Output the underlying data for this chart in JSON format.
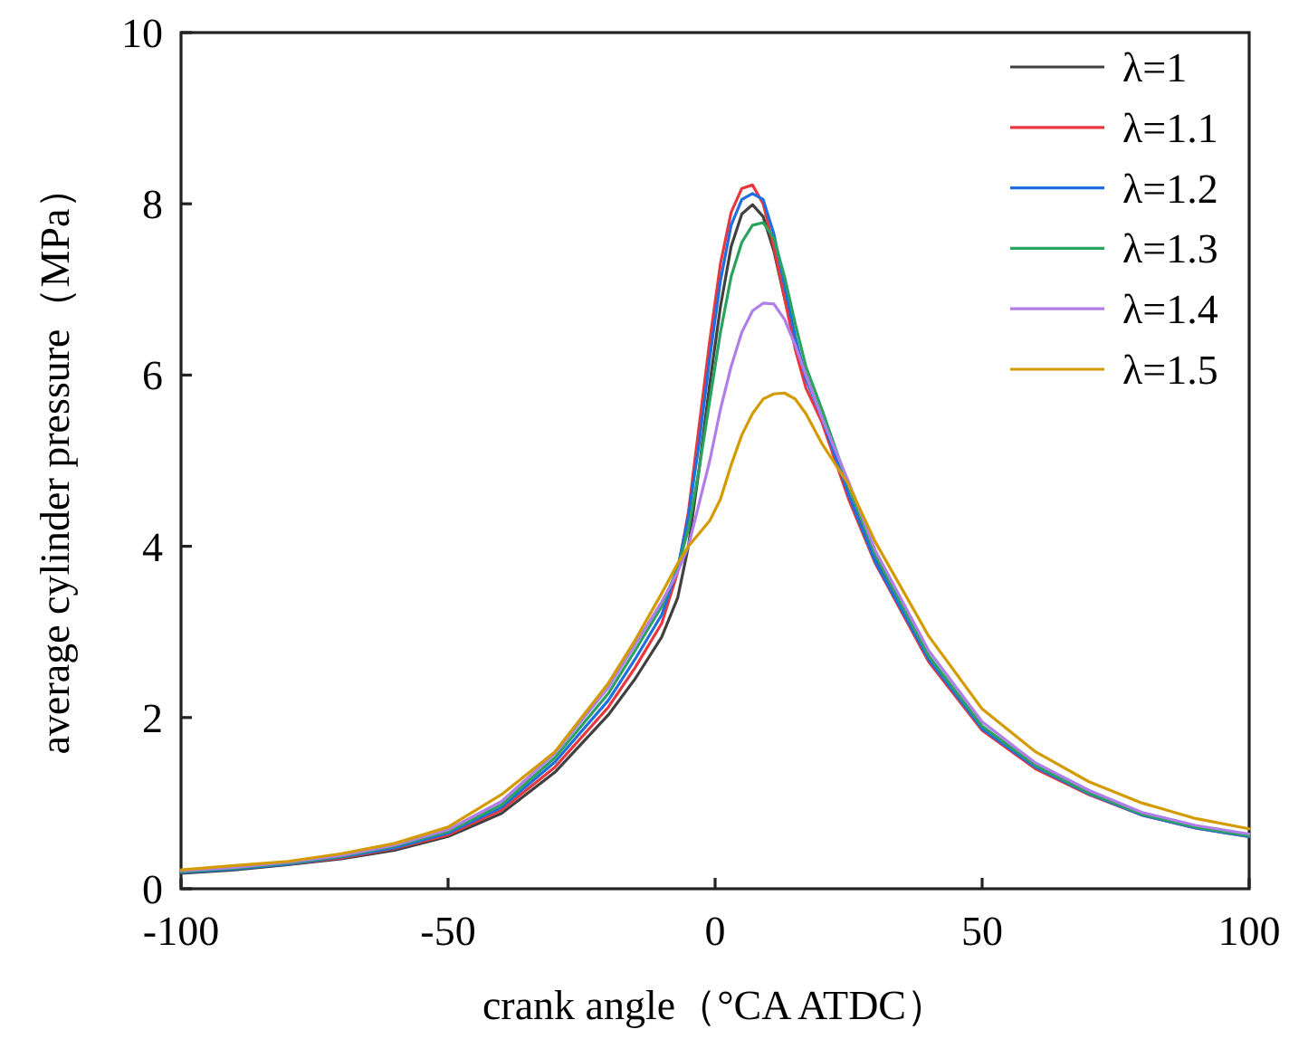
{
  "chart_data": {
    "type": "line",
    "xlabel": "crank angle（°CA ATDC）",
    "ylabel": "average cylinder pressure（MPa）",
    "xlim": [
      -100,
      100
    ],
    "xticks": [
      -100,
      -50,
      0,
      50,
      100
    ],
    "ylim": [
      0,
      10
    ],
    "yticks": [
      0,
      2,
      4,
      6,
      8,
      10
    ],
    "grid": false,
    "legend": "top right",
    "marker": "none",
    "line_style": "solid",
    "x": [
      -100,
      -90,
      -80,
      -70,
      -60,
      -50,
      -40,
      -30,
      -20,
      -15,
      -10,
      -7,
      -5,
      -3,
      -1,
      1,
      3,
      5,
      7,
      9,
      11,
      13,
      15,
      17,
      20,
      25,
      30,
      40,
      50,
      60,
      70,
      80,
      90,
      100
    ],
    "series": [
      {
        "name": "λ=1",
        "color": "#404040",
        "values": [
          0.18,
          0.22,
          0.28,
          0.35,
          0.45,
          0.61,
          0.88,
          1.36,
          2.03,
          2.45,
          2.94,
          3.4,
          4.0,
          4.9,
          5.9,
          6.8,
          7.5,
          7.88,
          7.99,
          7.85,
          7.45,
          6.9,
          6.4,
          6.0,
          5.5,
          4.6,
          3.85,
          2.7,
          1.88,
          1.43,
          1.12,
          0.87,
          0.72,
          0.62
        ]
      },
      {
        "name": "λ=1.1",
        "color": "#e8383d",
        "values": [
          null,
          null,
          0.29,
          0.36,
          0.47,
          0.63,
          0.92,
          1.42,
          2.12,
          2.58,
          3.1,
          3.7,
          4.4,
          5.4,
          6.4,
          7.3,
          7.9,
          8.18,
          8.22,
          8.0,
          7.5,
          6.9,
          6.3,
          5.85,
          5.45,
          4.55,
          3.8,
          2.65,
          1.85,
          1.4,
          1.1,
          0.86,
          0.71,
          0.61
        ]
      },
      {
        "name": "λ=1.2",
        "color": "#1f6fe0",
        "values": [
          0.19,
          0.23,
          0.29,
          0.37,
          0.48,
          0.65,
          0.95,
          1.48,
          2.2,
          2.68,
          3.2,
          3.75,
          4.35,
          5.2,
          6.2,
          7.1,
          7.75,
          8.05,
          8.12,
          8.05,
          7.65,
          7.05,
          6.45,
          5.95,
          5.5,
          4.6,
          3.82,
          2.68,
          1.87,
          1.42,
          1.11,
          0.86,
          0.71,
          0.61
        ]
      },
      {
        "name": "λ=1.3",
        "color": "#2aa35f",
        "values": [
          0.2,
          0.24,
          0.3,
          0.38,
          0.5,
          0.67,
          0.98,
          1.53,
          2.28,
          2.78,
          3.3,
          3.75,
          4.2,
          4.9,
          5.7,
          6.5,
          7.15,
          7.55,
          7.75,
          7.78,
          7.6,
          7.15,
          6.6,
          6.1,
          5.6,
          4.7,
          3.9,
          2.72,
          1.9,
          1.44,
          1.12,
          0.87,
          0.72,
          0.62
        ]
      },
      {
        "name": "λ=1.4",
        "color": "#b07ee8",
        "values": [
          0.21,
          0.25,
          0.31,
          0.39,
          0.51,
          0.69,
          1.02,
          1.58,
          2.35,
          2.85,
          3.35,
          3.7,
          4.0,
          4.5,
          5.0,
          5.6,
          6.1,
          6.5,
          6.75,
          6.84,
          6.83,
          6.65,
          6.35,
          6.0,
          5.5,
          4.75,
          3.95,
          2.78,
          1.95,
          1.47,
          1.15,
          0.89,
          0.74,
          0.64
        ]
      },
      {
        "name": "λ=1.5",
        "color": "#d49b00",
        "values": [
          0.22,
          0.27,
          0.32,
          0.41,
          0.53,
          0.72,
          1.1,
          1.6,
          2.4,
          2.9,
          3.45,
          3.8,
          4.0,
          4.15,
          4.3,
          4.55,
          4.95,
          5.3,
          5.55,
          5.72,
          5.78,
          5.79,
          5.72,
          5.55,
          5.2,
          4.72,
          4.05,
          2.95,
          2.1,
          1.6,
          1.25,
          1.0,
          0.82,
          0.7
        ]
      }
    ]
  }
}
